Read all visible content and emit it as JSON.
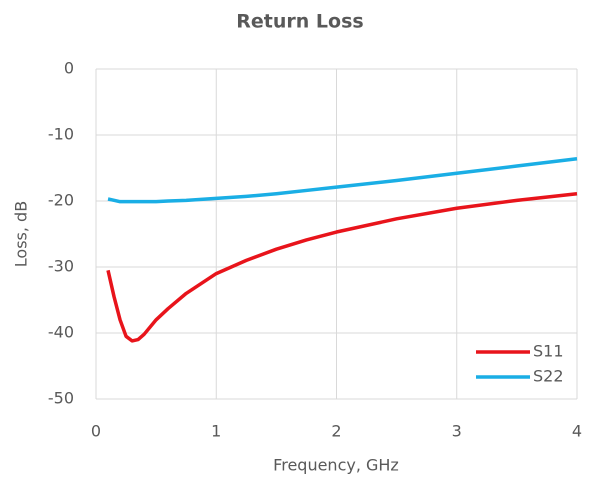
{
  "chart_data": {
    "type": "line",
    "title": "Return Loss",
    "x_label": "Frequency, GHz",
    "y_label": "Loss, dB",
    "x": [
      0.1,
      0.15,
      0.2,
      0.25,
      0.3,
      0.35,
      0.4,
      0.5,
      0.6,
      0.75,
      1,
      1.25,
      1.5,
      1.75,
      2,
      2.5,
      3,
      3.5,
      4
    ],
    "series": [
      {
        "name": "S11",
        "color": "#e8141b",
        "values": [
          -30.5,
          -34.5,
          -38,
          -40.5,
          -41.2,
          -41,
          -40.2,
          -38,
          -36.3,
          -34,
          -31,
          -29,
          -27.3,
          -25.9,
          -24.7,
          -22.7,
          -21.1,
          -19.9,
          -18.9
        ]
      },
      {
        "name": "S22",
        "color": "#1aaee5",
        "values": [
          -19.7,
          -19.9,
          -20.1,
          -20.1,
          -20.1,
          -20.1,
          -20.1,
          -20.1,
          -20,
          -19.9,
          -19.6,
          -19.3,
          -18.9,
          -18.4,
          -17.9,
          -16.9,
          -15.8,
          -14.7,
          -13.6
        ]
      }
    ],
    "xlim": [
      0,
      4
    ],
    "xticks": [
      0,
      1,
      2,
      3,
      4
    ],
    "ylim": [
      -50,
      0
    ],
    "yticks": [
      0,
      -10,
      -20,
      -30,
      -40,
      -50
    ],
    "grid": true,
    "legend": "lower right"
  }
}
